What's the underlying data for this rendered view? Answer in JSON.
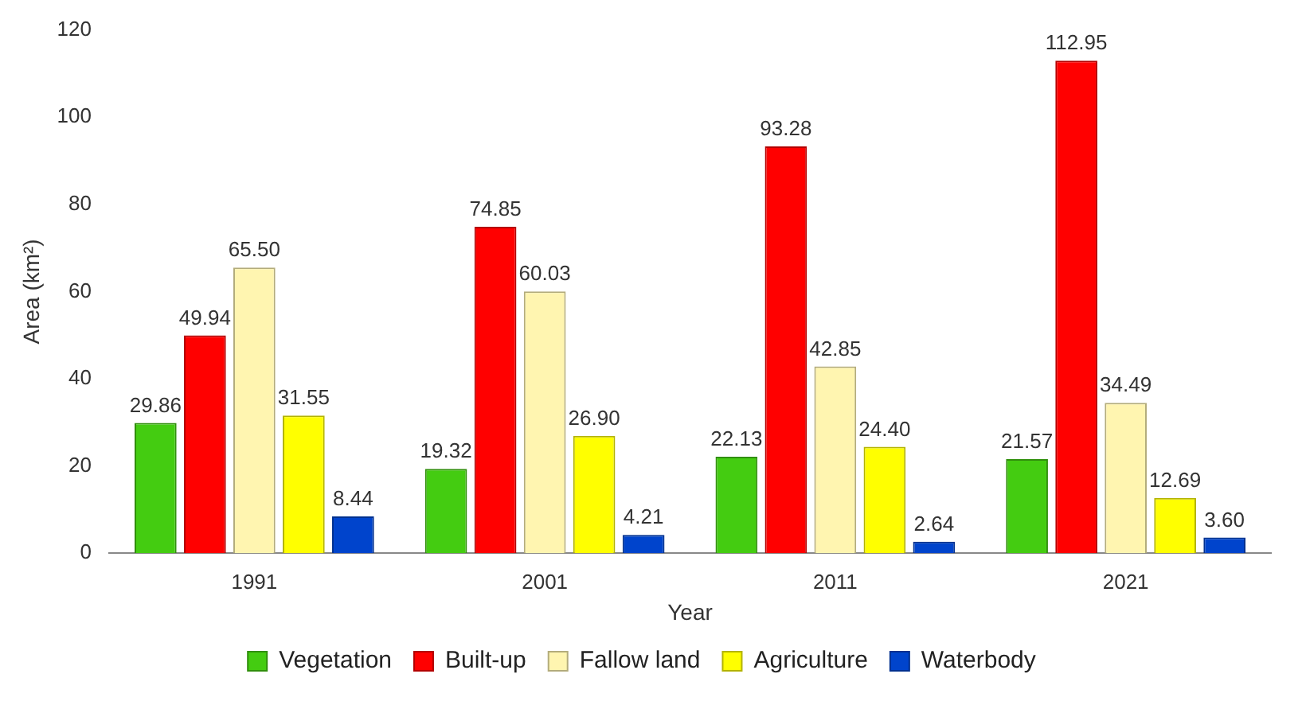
{
  "chart_data": {
    "type": "bar",
    "xlabel": "Year",
    "ylabel": "Area (km²)",
    "categories": [
      "1991",
      "2001",
      "2011",
      "2021"
    ],
    "series": [
      {
        "name": "Vegetation",
        "color": "#44cc11",
        "values": [
          29.86,
          19.32,
          22.13,
          21.57
        ],
        "value_labels": [
          "29.86",
          "19.32",
          "22.13",
          "21.57"
        ]
      },
      {
        "name": "Built-up",
        "color": "#ff0000",
        "values": [
          49.94,
          74.85,
          93.28,
          112.95
        ],
        "value_labels": [
          "49.94",
          "74.85",
          "93.28",
          "112.95"
        ]
      },
      {
        "name": "Fallow land",
        "color": "#fff5b0",
        "values": [
          65.5,
          60.03,
          42.85,
          34.49
        ],
        "value_labels": [
          "65.50",
          "60.03",
          "42.85",
          "34.49"
        ]
      },
      {
        "name": "Agriculture",
        "color": "#ffff00",
        "values": [
          31.55,
          26.9,
          24.4,
          12.69
        ],
        "value_labels": [
          "31.55",
          "26.90",
          "24.40",
          "12.69"
        ]
      },
      {
        "name": "Waterbody",
        "color": "#0044cc",
        "values": [
          8.44,
          4.21,
          2.64,
          3.6
        ],
        "value_labels": [
          "8.44",
          "4.21",
          "2.64",
          "3.60"
        ]
      }
    ],
    "ylim": [
      0,
      120
    ],
    "yticks": [
      0,
      20,
      40,
      60,
      80,
      100,
      120
    ],
    "grid": false,
    "legend": "bottom"
  }
}
